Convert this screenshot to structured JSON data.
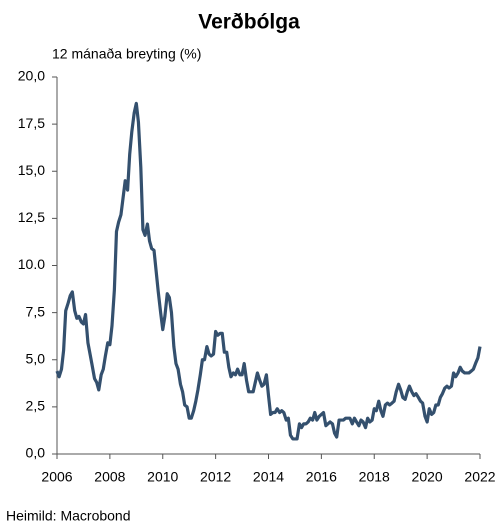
{
  "chart_data": {
    "type": "line",
    "title": "Verðbólga",
    "subtitle": "12 mánaða breyting (%)",
    "source": "Heimild: Macrobond",
    "xlim": [
      2006,
      2022
    ],
    "xticks": [
      2006,
      2008,
      2010,
      2012,
      2014,
      2016,
      2018,
      2020,
      2022
    ],
    "ylim": [
      0,
      20
    ],
    "yticks": [
      {
        "value": 0,
        "label": "0,0"
      },
      {
        "value": 2.5,
        "label": "2,5"
      },
      {
        "value": 5,
        "label": "5,0"
      },
      {
        "value": 7.5,
        "label": "7,5"
      },
      {
        "value": 10,
        "label": "10.0"
      },
      {
        "value": 12.5,
        "label": "12,5"
      },
      {
        "value": 15,
        "label": "15,0"
      },
      {
        "value": 17.5,
        "label": "17,5"
      },
      {
        "value": 20,
        "label": "20,0"
      }
    ],
    "grid": false,
    "x": [
      2006.0,
      2006.08,
      2006.17,
      2006.25,
      2006.33,
      2006.42,
      2006.5,
      2006.58,
      2006.67,
      2006.75,
      2006.83,
      2006.92,
      2007.0,
      2007.08,
      2007.17,
      2007.25,
      2007.33,
      2007.42,
      2007.5,
      2007.58,
      2007.67,
      2007.75,
      2007.83,
      2007.92,
      2008.0,
      2008.08,
      2008.17,
      2008.25,
      2008.33,
      2008.42,
      2008.5,
      2008.58,
      2008.67,
      2008.75,
      2008.83,
      2008.92,
      2009.0,
      2009.08,
      2009.17,
      2009.25,
      2009.33,
      2009.42,
      2009.5,
      2009.58,
      2009.67,
      2009.75,
      2009.83,
      2009.92,
      2010.0,
      2010.08,
      2010.17,
      2010.25,
      2010.33,
      2010.42,
      2010.5,
      2010.58,
      2010.67,
      2010.75,
      2010.83,
      2010.92,
      2011.0,
      2011.08,
      2011.17,
      2011.25,
      2011.33,
      2011.42,
      2011.5,
      2011.58,
      2011.67,
      2011.75,
      2011.83,
      2011.92,
      2012.0,
      2012.08,
      2012.17,
      2012.25,
      2012.33,
      2012.42,
      2012.5,
      2012.58,
      2012.67,
      2012.75,
      2012.83,
      2012.92,
      2013.0,
      2013.08,
      2013.17,
      2013.25,
      2013.33,
      2013.42,
      2013.5,
      2013.58,
      2013.67,
      2013.75,
      2013.83,
      2013.92,
      2014.0,
      2014.08,
      2014.17,
      2014.25,
      2014.33,
      2014.42,
      2014.5,
      2014.58,
      2014.67,
      2014.75,
      2014.83,
      2014.92,
      2015.0,
      2015.08,
      2015.17,
      2015.25,
      2015.33,
      2015.42,
      2015.5,
      2015.58,
      2015.67,
      2015.75,
      2015.83,
      2015.92,
      2016.0,
      2016.08,
      2016.17,
      2016.25,
      2016.33,
      2016.42,
      2016.5,
      2016.58,
      2016.67,
      2016.75,
      2016.83,
      2016.92,
      2017.0,
      2017.08,
      2017.17,
      2017.25,
      2017.33,
      2017.42,
      2017.5,
      2017.58,
      2017.67,
      2017.75,
      2017.83,
      2017.92,
      2018.0,
      2018.08,
      2018.17,
      2018.25,
      2018.33,
      2018.42,
      2018.5,
      2018.58,
      2018.67,
      2018.75,
      2018.83,
      2018.92,
      2019.0,
      2019.08,
      2019.17,
      2019.25,
      2019.33,
      2019.42,
      2019.5,
      2019.58,
      2019.67,
      2019.75,
      2019.83,
      2019.92,
      2020.0,
      2020.08,
      2020.17,
      2020.25,
      2020.33,
      2020.42,
      2020.5,
      2020.58,
      2020.67,
      2020.75,
      2020.83,
      2020.92,
      2021.0,
      2021.08,
      2021.17,
      2021.25,
      2021.33,
      2021.42,
      2021.5,
      2021.58,
      2021.67,
      2021.75,
      2021.83,
      2021.92,
      2022.0
    ],
    "series": [
      {
        "name": "Verðbólga",
        "color": "#34506e",
        "values": [
          4.4,
          4.1,
          4.5,
          5.5,
          7.6,
          8.0,
          8.4,
          8.6,
          7.6,
          7.2,
          7.3,
          7.0,
          6.9,
          7.4,
          5.9,
          5.3,
          4.7,
          4.0,
          3.8,
          3.4,
          4.2,
          4.5,
          5.2,
          5.9,
          5.8,
          6.8,
          8.7,
          11.8,
          12.3,
          12.7,
          13.6,
          14.5,
          14.0,
          15.9,
          17.1,
          18.1,
          18.6,
          17.6,
          15.2,
          11.9,
          11.6,
          12.2,
          11.3,
          10.9,
          10.8,
          9.7,
          8.6,
          7.5,
          6.6,
          7.3,
          8.5,
          8.3,
          7.5,
          5.7,
          4.8,
          4.5,
          3.7,
          3.3,
          2.6,
          2.5,
          1.9,
          1.9,
          2.3,
          2.8,
          3.4,
          4.2,
          5.0,
          5.0,
          5.7,
          5.3,
          5.2,
          5.3,
          6.5,
          6.3,
          6.4,
          6.4,
          5.4,
          5.4,
          4.6,
          4.1,
          4.3,
          4.2,
          4.5,
          4.2,
          4.2,
          4.8,
          3.9,
          3.3,
          3.3,
          3.3,
          3.8,
          4.3,
          3.9,
          3.6,
          3.7,
          4.2,
          3.1,
          2.1,
          2.2,
          2.2,
          2.4,
          2.2,
          2.3,
          2.2,
          1.8,
          1.9,
          1.0,
          0.8,
          0.8,
          0.8,
          1.6,
          1.4,
          1.6,
          1.6,
          1.7,
          1.9,
          1.8,
          2.2,
          1.8,
          2.0,
          2.1,
          2.2,
          1.5,
          1.6,
          1.7,
          1.6,
          1.1,
          0.9,
          1.8,
          1.8,
          1.8,
          1.9,
          1.9,
          1.9,
          1.6,
          1.9,
          1.7,
          1.5,
          1.8,
          1.7,
          1.4,
          1.9,
          1.7,
          1.8,
          2.4,
          2.3,
          2.8,
          2.3,
          2.0,
          2.6,
          2.7,
          2.6,
          2.7,
          2.8,
          3.3,
          3.7,
          3.4,
          3.0,
          2.9,
          3.3,
          3.6,
          3.3,
          3.1,
          3.2,
          3.0,
          2.8,
          2.7,
          2.0,
          1.7,
          2.4,
          2.1,
          2.2,
          2.6,
          2.6,
          3.0,
          3.2,
          3.5,
          3.6,
          3.5,
          3.6,
          4.3,
          4.1,
          4.3,
          4.6,
          4.4,
          4.3,
          4.3,
          4.3,
          4.4,
          4.5,
          4.8,
          5.1,
          5.7
        ]
      }
    ]
  }
}
